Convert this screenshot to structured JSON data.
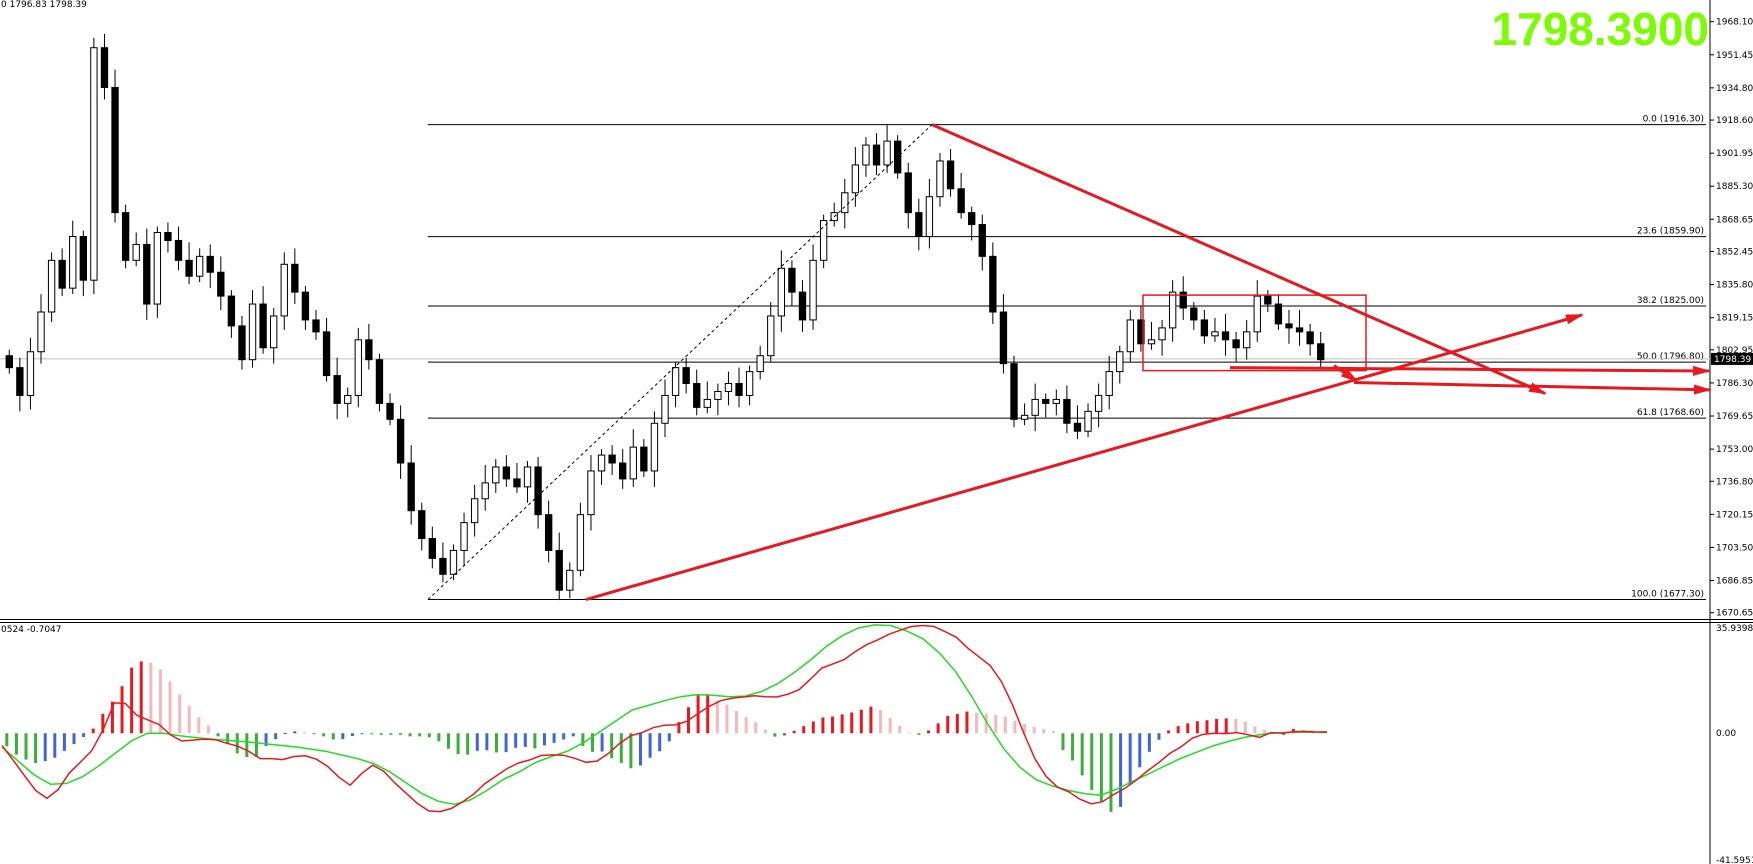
{
  "header": {
    "ohlc_info": "0 1796.83 1798.39",
    "big_price": "1798.3900",
    "macd_info": "0524 -0.7047"
  },
  "colors": {
    "bull_candle": "#ffffff",
    "bear_candle": "#000000",
    "trend_line": "#e8191e",
    "signal_line": "#22dd22",
    "macd_line": "#e8191e",
    "hist_pos_rising": "#e8191e",
    "hist_pos_falling": "#f4b8c0",
    "hist_neg_falling": "#3aad3a",
    "hist_neg_rising": "#3f66d6",
    "big_price": "#7cfc00"
  },
  "chart_data": [
    {
      "type": "candlestick",
      "price_axis_ticks": [
        1968.1,
        1951.45,
        1934.8,
        1918.6,
        1901.95,
        1885.3,
        1868.65,
        1852.45,
        1835.8,
        1819.15,
        1802.95,
        1786.3,
        1769.65,
        1753.0,
        1736.8,
        1720.15,
        1703.5,
        1686.85,
        1670.65
      ],
      "ylim": [
        1668,
        1977
      ],
      "current_price": "1798.39",
      "fibonacci_levels": [
        {
          "label": "0.0 (1916.30)",
          "price": 1916.3
        },
        {
          "label": "23.6 (1859.90)",
          "price": 1859.9
        },
        {
          "label": "38.2 (1825.00)",
          "price": 1825.0
        },
        {
          "label": "50.0 (1796.80)",
          "price": 1796.8
        },
        {
          "label": "61.8 (1768.60)",
          "price": 1768.6
        },
        {
          "label": "100.0 (1677.30)",
          "price": 1677.3
        }
      ],
      "price_path": [
        1794,
        1780,
        1802,
        1822,
        1848,
        1834,
        1860,
        1838,
        1955,
        1935,
        1872,
        1848,
        1856,
        1826,
        1862,
        1858,
        1848,
        1840,
        1850,
        1842,
        1830,
        1815,
        1798,
        1826,
        1804,
        1820,
        1846,
        1832,
        1818,
        1812,
        1790,
        1776,
        1780,
        1808,
        1798,
        1776,
        1768,
        1746,
        1722,
        1708,
        1698,
        1690,
        1702,
        1716,
        1728,
        1736,
        1744,
        1738,
        1734,
        1744,
        1720,
        1702,
        1682,
        1692,
        1720,
        1742,
        1750,
        1746,
        1738,
        1754,
        1742,
        1766,
        1780,
        1794,
        1786,
        1774,
        1778,
        1782,
        1786,
        1780,
        1792,
        1800,
        1820,
        1844,
        1832,
        1818,
        1848,
        1868,
        1872,
        1882,
        1896,
        1906,
        1896,
        1908,
        1892,
        1872,
        1860,
        1880,
        1898,
        1884,
        1872,
        1866,
        1850,
        1822,
        1796,
        1768,
        1770,
        1778,
        1776,
        1778,
        1766,
        1762,
        1772,
        1780,
        1792,
        1802,
        1818,
        1806,
        1808,
        1814,
        1832,
        1824,
        1818,
        1810,
        1812,
        1808,
        1804,
        1812,
        1830,
        1826,
        1816,
        1814,
        1812,
        1806,
        1798
      ]
    },
    {
      "type": "macd",
      "zero_label": "0.00",
      "upper_label": "35.9398",
      "lower_label": "-41.5951",
      "ylim": [
        -41.5951,
        35.9398
      ],
      "macd_line": [
        -4.0,
        -8.7,
        -13.7,
        -18.5,
        -21.0,
        -18.2,
        -12.8,
        -9.3,
        -5.6,
        1.1,
        9.8,
        9.6,
        5.8,
        4.3,
        2.8,
        -0.5,
        -2.5,
        -2.2,
        -1.9,
        -2.1,
        -3.2,
        -4.2,
        -5.9,
        -8.2,
        -8.2,
        -8.5,
        -7.5,
        -7.3,
        -8.4,
        -10.7,
        -14.2,
        -16.8,
        -13.1,
        -10.3,
        -12.3,
        -16.1,
        -19.4,
        -22.7,
        -25.1,
        -25.3,
        -24.3,
        -22.2,
        -19.7,
        -16.3,
        -13.8,
        -11.4,
        -9.6,
        -8.6,
        -7.2,
        -7.0,
        -7.1,
        -8.1,
        -9.4,
        -9.0,
        -6.5,
        -3.3,
        -0.8,
        0.2,
        1.8,
        2.6,
        2.7,
        3.9,
        6.4,
        8.7,
        10.5,
        11.3,
        11.7,
        12.1,
        11.8,
        11.7,
        12.6,
        14.1,
        17.5,
        21.0,
        22.4,
        23.8,
        26.4,
        28.6,
        30.2,
        32.0,
        33.3,
        34.5,
        34.8,
        34.5,
        32.8,
        31.0,
        27.5,
        24.7,
        21.9,
        16.7,
        9.1,
        0.0,
        -8.4,
        -14.0,
        -17.4,
        -18.9,
        -21.3,
        -22.8,
        -22.1,
        -19.8,
        -17.8,
        -15.2,
        -12.2,
        -9.5,
        -6.5,
        -4.4,
        -1.6,
        -0.3,
        0.0,
        -0.1,
        0.2,
        -0.5,
        -1.3,
        0.2,
        0.0,
        0.5,
        0.6,
        0.4,
        0.3
      ],
      "signal_line": [
        -4.5,
        -9.0,
        -13.5,
        -16.5,
        -16.2,
        -14.0,
        -10.5,
        -6.5,
        -2.5,
        0.0,
        0.0,
        -0.8,
        -1.4,
        -1.9,
        -2.3,
        -2.7,
        -3.2,
        -3.8,
        -4.3,
        -5.0,
        -5.8,
        -7.0,
        -8.2,
        -9.8,
        -12.5,
        -16.0,
        -19.5,
        -22.0,
        -23.0,
        -21.5,
        -18.5,
        -15.0,
        -12.5,
        -9.5,
        -7.5,
        -5.8,
        -3.0,
        0.5,
        4.0,
        7.5,
        9.0,
        10.5,
        11.8,
        12.5,
        12.3,
        11.8,
        12.0,
        13.5,
        16.0,
        19.5,
        23.5,
        28.0,
        31.5,
        34.0,
        35.0,
        34.8,
        33.0,
        30.5,
        26.0,
        20.0,
        12.0,
        3.0,
        -5.0,
        -11.0,
        -15.0,
        -17.0,
        -18.5,
        -19.5,
        -20.0,
        -18.0,
        -15.5,
        -13.0,
        -10.5,
        -8.0,
        -6.0,
        -4.0,
        -2.5,
        -1.2,
        -0.3,
        0.2,
        0.3,
        0.3,
        0.5
      ],
      "histogram": [
        -4.2,
        -6.9,
        -8.5,
        -9.6,
        -9.0,
        -7.9,
        -5.7,
        -3.5,
        -1.2,
        1.5,
        6.3,
        10.2,
        15.2,
        21.2,
        23.2,
        22.8,
        20.6,
        16.7,
        12.5,
        8.9,
        5.2,
        2.5,
        -1.0,
        -3.5,
        -6.5,
        -7.7,
        -7.7,
        -4.1,
        -1.9,
        0.1,
        0.6,
        0.4,
        -0.3,
        -1.0,
        -2.0,
        -1.9,
        -0.9,
        -0.3,
        -0.3,
        -0.5,
        -0.5,
        -0.5,
        -1.0,
        -1.0,
        -1.3,
        -2.6,
        -5.0,
        -6.7,
        -6.9,
        -5.7,
        -5.5,
        -6.2,
        -6.1,
        -4.7,
        -4.4,
        -4.9,
        -3.9,
        -3.1,
        -2.0,
        -1.0,
        -4.1,
        -6.0,
        -5.9,
        -8.0,
        -9.6,
        -11.3,
        -10.4,
        -7.9,
        -5.8,
        -2.6,
        3.6,
        8.4,
        12.3,
        12.6,
        10.6,
        9.3,
        7.2,
        5.3,
        3.6,
        1.2,
        -1.1,
        -0.7,
        0.8,
        2.3,
        3.8,
        5.1,
        5.4,
        6.1,
        6.7,
        7.6,
        8.6,
        7.5,
        4.9,
        2.4,
        0.3,
        -0.5,
        0.9,
        3.2,
        5.6,
        6.2,
        7.0,
        6.6,
        6.4,
        5.9,
        5.4,
        4.1,
        3.0,
        2.0,
        1.3,
        0.7,
        -5.4,
        -8.8,
        -13.6,
        -18.3,
        -22.2,
        -25.4,
        -23.8,
        -16.6,
        -11.0,
        -6.0,
        -2.1,
        0.9,
        2.3,
        3.2,
        3.9,
        4.2,
        4.6,
        4.8,
        4.6,
        3.7,
        2.2,
        1.0,
        0.4,
        -0.6,
        1.4,
        1.0,
        0.9,
        0.8
      ]
    }
  ]
}
